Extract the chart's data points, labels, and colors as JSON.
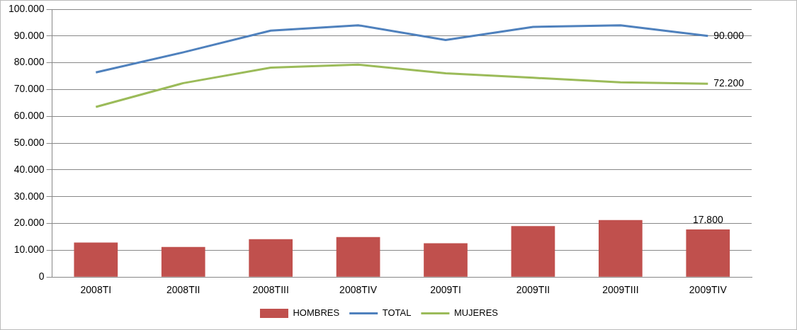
{
  "chart_data": {
    "type": "bar",
    "categories": [
      "2008TI",
      "2008TII",
      "2008TIII",
      "2008TIV",
      "2009TI",
      "2009TII",
      "2009TIII",
      "2009TIV"
    ],
    "series": [
      {
        "name": "HOMBRES",
        "color": "#c0504d",
        "values": [
          12900,
          11200,
          14100,
          14900,
          12600,
          19000,
          21300,
          17800
        ],
        "value_labels": [
          null,
          null,
          null,
          null,
          null,
          null,
          null,
          "17.800"
        ]
      },
      {
        "name": "TOTAL",
        "type": "line",
        "color": "#4f81bd",
        "values": [
          76400,
          83900,
          92000,
          94000,
          88500,
          93400,
          94000,
          90000
        ],
        "value_labels": [
          null,
          null,
          null,
          null,
          null,
          null,
          null,
          "90.000"
        ]
      },
      {
        "name": "MUJERES",
        "type": "line",
        "color": "#9bbb59",
        "values": [
          63500,
          72400,
          78200,
          79300,
          76100,
          74400,
          72700,
          72200
        ],
        "value_labels": [
          null,
          null,
          null,
          null,
          null,
          null,
          null,
          "72.200"
        ]
      }
    ],
    "ylim": [
      0,
      100000
    ],
    "yticks": [
      {
        "value": 0,
        "label": "0"
      },
      {
        "value": 10000,
        "label": "10.000"
      },
      {
        "value": 20000,
        "label": "20.000"
      },
      {
        "value": 30000,
        "label": "30.000"
      },
      {
        "value": 40000,
        "label": "40.000"
      },
      {
        "value": 50000,
        "label": "50.000"
      },
      {
        "value": 60000,
        "label": "60.000"
      },
      {
        "value": 70000,
        "label": "70.000"
      },
      {
        "value": 80000,
        "label": "80.000"
      },
      {
        "value": 90000,
        "label": "90.000"
      },
      {
        "value": 100000,
        "label": "100.000"
      }
    ],
    "grid": "y",
    "legend": "bottom",
    "marker": "none",
    "line_style": "solid"
  }
}
